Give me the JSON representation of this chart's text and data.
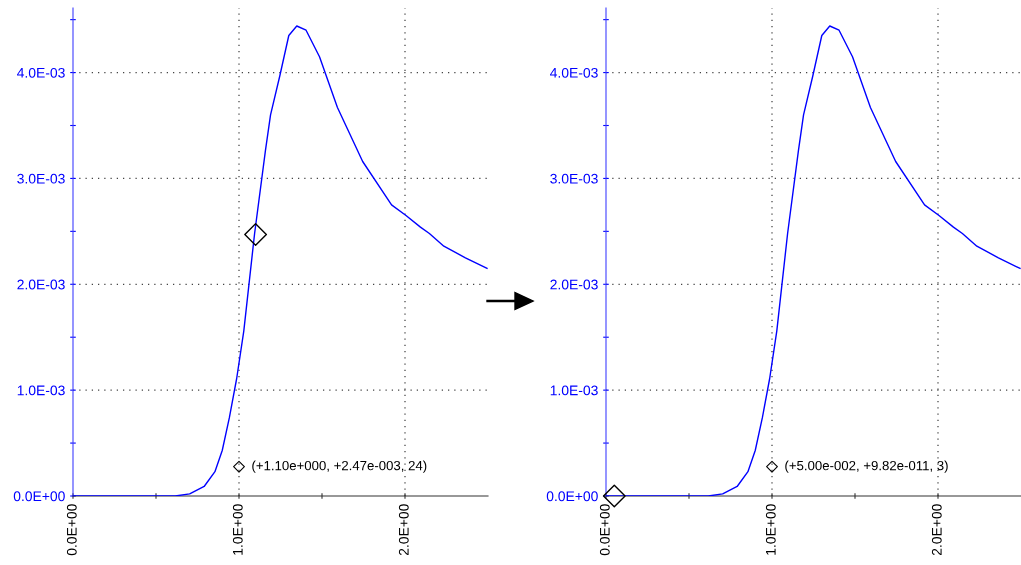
{
  "chart_data": [
    {
      "type": "line",
      "xlim": [
        0,
        2.5
      ],
      "ylim": [
        0,
        0.00461
      ],
      "xticks": [
        {
          "value": 0,
          "label": "0.0E+00"
        },
        {
          "value": 0.5,
          "label": null
        },
        {
          "value": 1,
          "label": "1.0E+00"
        },
        {
          "value": 1.5,
          "label": null
        },
        {
          "value": 2,
          "label": "2.0E+00"
        }
      ],
      "yticks": [
        {
          "value": 0,
          "label": "0.0E+00"
        },
        {
          "value": 0.0005,
          "label": null
        },
        {
          "value": 0.001,
          "label": "1.0E-03"
        },
        {
          "value": 0.0015,
          "label": null
        },
        {
          "value": 0.002,
          "label": "2.0E-03"
        },
        {
          "value": 0.0025,
          "label": null
        },
        {
          "value": 0.003,
          "label": "3.0E-03"
        },
        {
          "value": 0.0035,
          "label": null
        },
        {
          "value": 0.004,
          "label": "4.0E-03"
        },
        {
          "value": 0.0045,
          "label": null
        }
      ],
      "grid": true,
      "series": [
        {
          "color": "#0000ff",
          "x": [
            0,
            0.616,
            0.703,
            0.79,
            0.855,
            0.899,
            0.942,
            0.986,
            1.029,
            1.094,
            1.159,
            1.19,
            1.246,
            1.3,
            1.348,
            1.404,
            1.485,
            1.593,
            1.745,
            1.919,
            2.006,
            2.093,
            2.147,
            2.234,
            2.364,
            2.494
          ],
          "values": [
            0,
            0,
            2e-05,
            9e-05,
            0.00023,
            0.00043,
            0.00074,
            0.00111,
            0.00156,
            0.00248,
            0.00326,
            0.0036,
            0.00397,
            0.00435,
            0.00444,
            0.0044,
            0.00415,
            0.00367,
            0.00316,
            0.00275,
            0.00265,
            0.00254,
            0.00248,
            0.00236,
            0.00225,
            0.00215
          ]
        },
        {
          "type": "scatter",
          "color": "#000000",
          "marker": "diamond",
          "x": [
            1.1
          ],
          "values": [
            0.00247
          ]
        }
      ],
      "annotations": [
        "(+1.10e+000, +2.47e-003, 24)"
      ]
    },
    {
      "type": "line",
      "xlim": [
        0,
        2.5
      ],
      "ylim": [
        0,
        0.00461
      ],
      "xticks": [
        {
          "value": 0,
          "label": "0.0E+00"
        },
        {
          "value": 0.5,
          "label": null
        },
        {
          "value": 1,
          "label": "1.0E+00"
        },
        {
          "value": 1.5,
          "label": null
        },
        {
          "value": 2,
          "label": "2.0E+00"
        }
      ],
      "yticks": [
        {
          "value": 0,
          "label": "0.0E+00"
        },
        {
          "value": 0.0005,
          "label": null
        },
        {
          "value": 0.001,
          "label": "1.0E-03"
        },
        {
          "value": 0.0015,
          "label": null
        },
        {
          "value": 0.002,
          "label": "2.0E-03"
        },
        {
          "value": 0.0025,
          "label": null
        },
        {
          "value": 0.003,
          "label": "3.0E-03"
        },
        {
          "value": 0.0035,
          "label": null
        },
        {
          "value": 0.004,
          "label": "4.0E-03"
        },
        {
          "value": 0.0045,
          "label": null
        }
      ],
      "grid": true,
      "series": [
        {
          "color": "#0000ff",
          "x": [
            0,
            0.616,
            0.703,
            0.79,
            0.855,
            0.899,
            0.942,
            0.986,
            1.029,
            1.094,
            1.159,
            1.19,
            1.246,
            1.3,
            1.348,
            1.404,
            1.485,
            1.593,
            1.745,
            1.919,
            2.006,
            2.093,
            2.147,
            2.234,
            2.364,
            2.494
          ],
          "values": [
            0,
            0,
            2e-05,
            9e-05,
            0.00023,
            0.00043,
            0.00074,
            0.00111,
            0.00156,
            0.00248,
            0.00326,
            0.0036,
            0.00397,
            0.00435,
            0.00444,
            0.0044,
            0.00415,
            0.00367,
            0.00316,
            0.00275,
            0.00265,
            0.00254,
            0.00248,
            0.00236,
            0.00225,
            0.00215
          ]
        },
        {
          "type": "scatter",
          "color": "#000000",
          "marker": "diamond",
          "x": [
            0.05
          ],
          "values": [
            0
          ]
        }
      ],
      "annotations": [
        "(+5.00e-002, +9.82e-011, 3)"
      ]
    }
  ]
}
